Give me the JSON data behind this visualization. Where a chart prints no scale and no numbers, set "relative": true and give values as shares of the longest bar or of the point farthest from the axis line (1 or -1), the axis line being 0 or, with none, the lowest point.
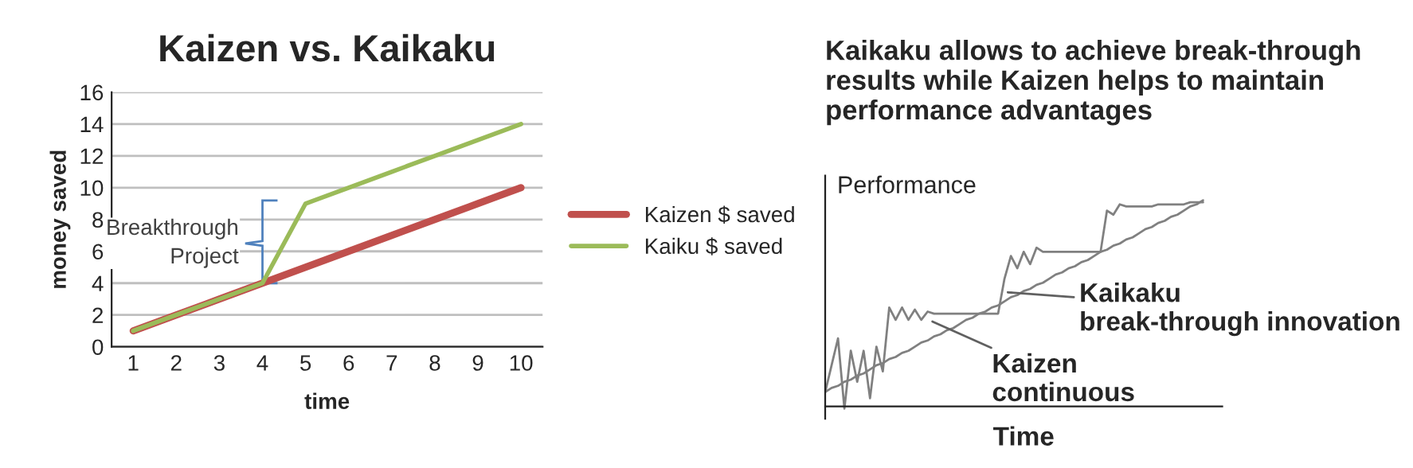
{
  "chart_data": [
    {
      "type": "line",
      "title": "Kaizen vs. Kaikaku",
      "xlabel": "time",
      "ylabel": "money saved",
      "categories": [
        "1",
        "2",
        "3",
        "4",
        "5",
        "6",
        "7",
        "8",
        "9",
        "10"
      ],
      "series": [
        {
          "name": "Kaizen $ saved",
          "color": "#c0504d",
          "values": [
            1,
            2,
            3,
            4,
            5,
            6,
            7,
            8,
            9,
            10
          ]
        },
        {
          "name": "Kaiku $ saved",
          "color": "#9bbb59",
          "values": [
            1,
            2,
            3,
            4,
            9,
            10,
            11,
            12,
            13,
            14
          ]
        }
      ],
      "ylim": [
        0,
        16
      ],
      "yticks": [
        0,
        2,
        4,
        6,
        8,
        10,
        12,
        14,
        16
      ],
      "grid": "y",
      "legend": "right",
      "marker": "none",
      "line_style": "solid",
      "annotations": [
        "Breakthrough\nProject"
      ]
    },
    {
      "type": "line",
      "title": "Kaikaku allows to achieve break-through results while Kaizen helps to maintain performance advantages",
      "xlabel": "Time",
      "ylabel": "Performance",
      "relative": true,
      "grid": false,
      "marker": "none",
      "line_style": "solid",
      "categories": [
        null,
        null,
        null,
        null,
        null,
        null,
        null,
        null,
        null,
        null,
        null,
        null,
        null,
        null,
        null,
        null,
        null,
        null,
        null,
        null,
        null,
        null,
        null,
        null,
        null,
        null,
        null,
        null,
        null,
        null,
        null,
        null,
        null,
        null,
        null,
        null,
        null,
        null,
        null,
        null,
        null,
        null,
        null,
        null,
        null,
        null,
        null,
        null,
        null,
        null,
        null,
        null,
        null,
        null,
        null,
        null,
        null,
        null,
        null,
        null
      ],
      "series": [
        {
          "color": "#808080",
          "values": [
            0.07,
            0.09,
            0.1,
            0.12,
            0.13,
            0.15,
            0.16,
            0.18,
            0.2,
            0.21,
            0.23,
            0.24,
            0.26,
            0.27,
            0.29,
            0.31,
            0.32,
            0.34,
            0.35,
            0.37,
            0.38,
            0.4,
            0.42,
            0.43,
            0.45,
            0.46,
            0.48,
            0.49,
            0.51,
            0.53,
            0.54,
            0.56,
            0.57,
            0.59,
            0.6,
            0.62,
            0.64,
            0.65,
            0.67,
            0.68,
            0.7,
            0.71,
            0.73,
            0.75,
            0.76,
            0.78,
            0.79,
            0.81,
            0.82,
            0.84,
            0.86,
            0.87,
            0.89,
            0.9,
            0.92,
            0.93,
            0.95,
            0.97,
            0.98,
            1.0
          ]
        },
        {
          "color": "#808080",
          "values": [
            0.07,
            0.2,
            0.33,
            -0.01,
            0.27,
            0.12,
            0.27,
            0.04,
            0.29,
            0.17,
            0.48,
            0.42,
            0.48,
            0.42,
            0.47,
            0.42,
            0.46,
            0.45,
            0.45,
            0.45,
            0.45,
            0.45,
            0.45,
            0.45,
            0.45,
            0.45,
            0.45,
            0.45,
            0.62,
            0.73,
            0.67,
            0.75,
            0.69,
            0.77,
            0.75,
            0.75,
            0.75,
            0.75,
            0.75,
            0.75,
            0.75,
            0.75,
            0.75,
            0.75,
            0.95,
            0.93,
            0.98,
            0.97,
            0.97,
            0.97,
            0.97,
            0.97,
            0.98,
            0.98,
            0.98,
            0.98,
            0.98,
            0.99,
            0.99,
            0.99
          ]
        }
      ],
      "annotations": [
        "Kaikaku\nbreak-through innovation",
        "Kaizen\ncontinuous"
      ]
    }
  ]
}
